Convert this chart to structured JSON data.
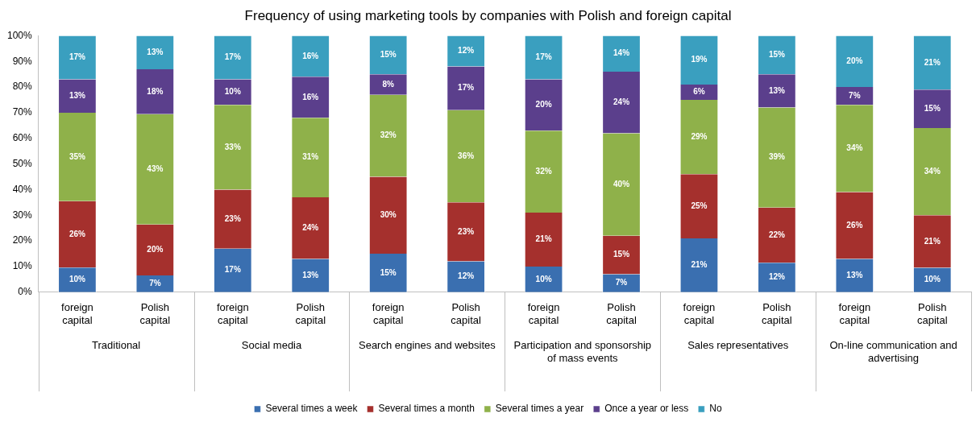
{
  "chart_data": {
    "type": "bar",
    "stacked": true,
    "title": "Frequency of using marketing tools by companies with Polish and foreign capital",
    "categories": [
      "foreign capital",
      "Polish capital",
      "foreign capital",
      "Polish capital",
      "foreign capital",
      "Polish capital",
      "foreign capital",
      "Polish capital",
      "foreign capital",
      "Polish capital",
      "foreign capital",
      "Polish capital"
    ],
    "annotations": [
      "Traditional",
      "Social media",
      "Search engines and websites",
      "Participation and sponsorship of mass events",
      "Sales representatives",
      "On-line communication and advertising"
    ],
    "series": [
      {
        "name": "Several times a week",
        "color": "#3a6fb0",
        "values": [
          9.6,
          6.5,
          17,
          13,
          15,
          12,
          10,
          7,
          21,
          11.5,
          13,
          9.5
        ],
        "value_labels": [
          "10%",
          "7%",
          "17%",
          "13%",
          "15%",
          "12%",
          "10%",
          "7%",
          "21%",
          "12%",
          "13%",
          "10%"
        ]
      },
      {
        "name": "Several times a month",
        "color": "#a5302d",
        "values": [
          25.9,
          19.9,
          23,
          24,
          30,
          23,
          21,
          15,
          25,
          21.5,
          26,
          20.5
        ],
        "value_labels": [
          "26%",
          "20%",
          "23%",
          "24%",
          "30%",
          "23%",
          "21%",
          "15%",
          "25%",
          "22%",
          "26%",
          "21%"
        ]
      },
      {
        "name": "Several times a year",
        "color": "#8fb14a",
        "values": [
          34.5,
          43,
          33,
          31,
          32,
          36,
          32,
          40,
          29,
          39,
          34,
          34
        ],
        "value_labels": [
          "35%",
          "43%",
          "33%",
          "31%",
          "32%",
          "36%",
          "32%",
          "40%",
          "29%",
          "39%",
          "34%",
          "34%"
        ]
      },
      {
        "name": "Once a year or less",
        "color": "#5b3f8c",
        "values": [
          13,
          17.5,
          10,
          16,
          8,
          17,
          20,
          24,
          6,
          13,
          7,
          15
        ],
        "value_labels": [
          "13%",
          "18%",
          "10%",
          "16%",
          "8%",
          "17%",
          "20%",
          "24%",
          "6%",
          "13%",
          "7%",
          "15%"
        ]
      },
      {
        "name": "No",
        "color": "#3a9fbf",
        "values": [
          17,
          13.1,
          17,
          16,
          15,
          12,
          17,
          14,
          19,
          15,
          20,
          21
        ],
        "value_labels": [
          "17%",
          "13%",
          "17%",
          "16%",
          "15%",
          "12%",
          "17%",
          "14%",
          "19%",
          "15%",
          "20%",
          "21%"
        ]
      }
    ],
    "ylim": [
      0,
      100
    ],
    "yticks": [
      {
        "value": 0,
        "label": "0%"
      },
      {
        "value": 10,
        "label": "10%"
      },
      {
        "value": 20,
        "label": "20%"
      },
      {
        "value": 30,
        "label": "30%"
      },
      {
        "value": 40,
        "label": "40%"
      },
      {
        "value": 50,
        "label": "50%"
      },
      {
        "value": 60,
        "label": "60%"
      },
      {
        "value": 70,
        "label": "70%"
      },
      {
        "value": 80,
        "label": "80%"
      },
      {
        "value": 90,
        "label": "90%"
      },
      {
        "value": 100,
        "label": "100%"
      }
    ],
    "legend": "bottom"
  }
}
